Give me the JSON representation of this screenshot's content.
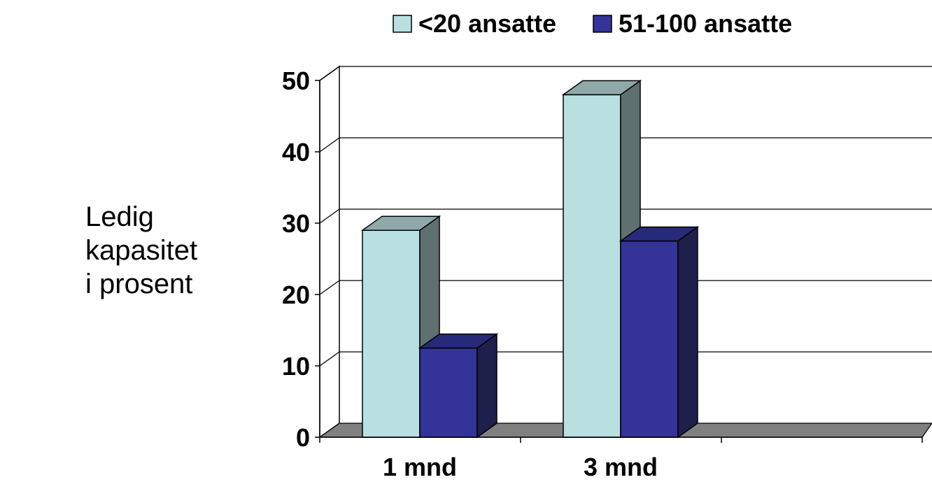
{
  "chart_data": {
    "type": "bar",
    "title": "",
    "xlabel": "",
    "ylabel": [
      "Ledig kapasitet",
      "i prosent"
    ],
    "categories": [
      "1 mnd",
      "3 mnd",
      ""
    ],
    "series": [
      {
        "name": "<20 ansatte",
        "values": [
          29,
          48,
          null
        ],
        "color": "#B8E0E0",
        "top_color": "#8FA8A8",
        "side_color": "#5F7070"
      },
      {
        "name": "51-100 ansatte",
        "values": [
          12.5,
          27.5,
          null
        ],
        "color": "#333399",
        "top_color": "#27297A",
        "side_color": "#1F1F4C"
      }
    ],
    "ylim": [
      0,
      50
    ],
    "yticks": [
      "0",
      "10",
      "20",
      "30",
      "40",
      "50"
    ],
    "grid": true,
    "three_d": true,
    "legend_position": "top",
    "floor_color": "#808080"
  }
}
